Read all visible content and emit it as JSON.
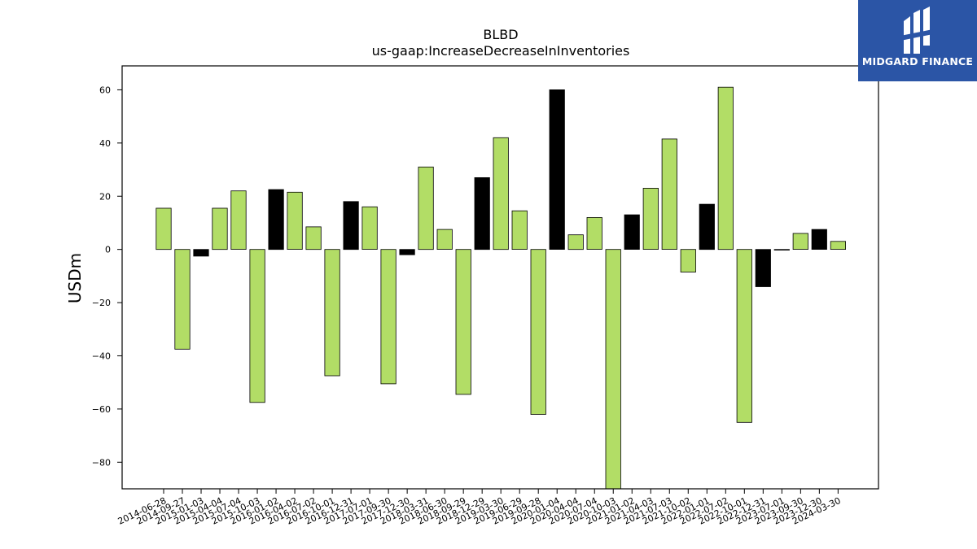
{
  "brand": {
    "name": "MIDGARD FINANCE",
    "bg_color": "#2b55a6"
  },
  "chart_data": {
    "type": "bar",
    "title": "BLBD",
    "subtitle": "us-gaap:IncreaseDecreaseInInventories",
    "xlabel": "",
    "ylabel": "USDm",
    "ylim": [
      -90,
      69
    ],
    "yticks": [
      -80,
      -60,
      -40,
      -20,
      0,
      20,
      40,
      60
    ],
    "grid": false,
    "colors": {
      "primary": "#b2dd66",
      "alternate": "#000000",
      "edge": "#000000"
    },
    "categories": [
      "2014-06-28",
      "2014-09-27",
      "2015-01-03",
      "2015-04-04",
      "2015-07-04",
      "2015-10-03",
      "2016-01-02",
      "2016-04-02",
      "2016-07-02",
      "2016-10-01",
      "2016-12-31",
      "2017-07-01",
      "2017-09-30",
      "2017-12-30",
      "2018-03-31",
      "2018-06-30",
      "2018-09-29",
      "2018-12-29",
      "2019-03-30",
      "2019-06-29",
      "2019-09-28",
      "2020-01-04",
      "2020-04-04",
      "2020-07-04",
      "2020-10-03",
      "2021-01-02",
      "2021-04-03",
      "2021-07-03",
      "2021-10-02",
      "2022-01-01",
      "2022-07-02",
      "2022-10-01",
      "2022-12-31",
      "2023-07-01",
      "2023-09-30",
      "2023-12-30",
      "2024-03-30"
    ],
    "values": [
      15.5,
      -37.5,
      -2.5,
      15.5,
      22,
      -57.5,
      22.5,
      21.5,
      8.5,
      -47.5,
      18,
      16,
      -50.5,
      -2,
      31,
      7.5,
      -54.5,
      27,
      42,
      14.5,
      -62,
      60,
      5.5,
      12,
      -90,
      13,
      23,
      41.5,
      -8.5,
      17,
      61,
      -65,
      -14,
      0,
      6,
      7.5,
      3
    ],
    "bar_colors": [
      "#b2dd66",
      "#b2dd66",
      "#000000",
      "#b2dd66",
      "#b2dd66",
      "#b2dd66",
      "#000000",
      "#b2dd66",
      "#b2dd66",
      "#b2dd66",
      "#000000",
      "#b2dd66",
      "#b2dd66",
      "#000000",
      "#b2dd66",
      "#b2dd66",
      "#b2dd66",
      "#000000",
      "#b2dd66",
      "#b2dd66",
      "#b2dd66",
      "#000000",
      "#b2dd66",
      "#b2dd66",
      "#b2dd66",
      "#000000",
      "#b2dd66",
      "#b2dd66",
      "#b2dd66",
      "#000000",
      "#b2dd66",
      "#b2dd66",
      "#000000",
      "#b2dd66",
      "#b2dd66",
      "#000000",
      "#b2dd66"
    ]
  }
}
